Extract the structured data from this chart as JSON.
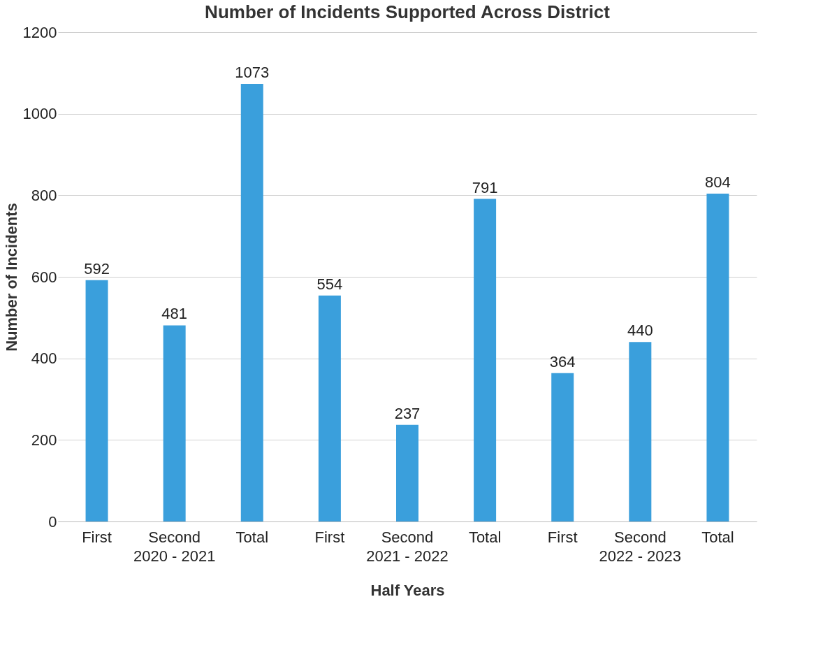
{
  "chart_data": {
    "type": "bar",
    "title": "Number of Incidents Supported Across District",
    "xlabel": "Half Years",
    "ylabel": "Number of Incidents",
    "categories": [
      "First",
      "Second",
      "Total",
      "First",
      "Second",
      "Total",
      "First",
      "Second",
      "Total"
    ],
    "values": [
      592,
      481,
      1073,
      554,
      237,
      791,
      364,
      440,
      804
    ],
    "color": "#3a9fdc",
    "annotations": [
      "2020 - 2021",
      "2021 - 2022",
      "2022 - 2023"
    ],
    "ylim": [
      0,
      1200
    ],
    "yticks": [
      0,
      200,
      400,
      600,
      800,
      1000,
      1200
    ],
    "grid": "y",
    "data_labels": true
  }
}
